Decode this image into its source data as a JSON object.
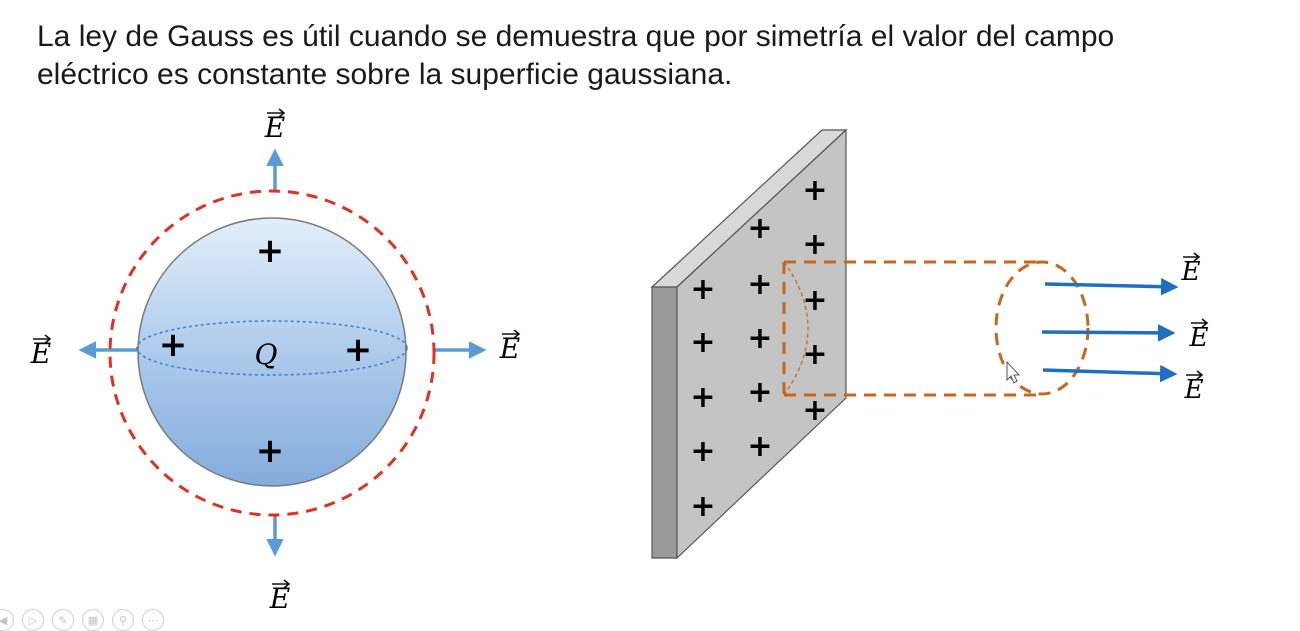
{
  "intro": {
    "line1": "La ley de Gauss es útil cuando se demuestra que por simetría el valor del campo",
    "line2": "eléctrico es constante sobre la superficie gaussiana."
  },
  "sphere": {
    "charge_label": "Q",
    "field_labels": {
      "top": "E",
      "left": "E",
      "right": "E",
      "bottom": "E"
    },
    "plus_sign": "+"
  },
  "plate": {
    "plus_sign": "+",
    "field_labels": [
      "E",
      "E",
      "E"
    ]
  },
  "colors": {
    "gaussian_sphere": "#e03020",
    "cylinder": "#c8671c",
    "arrow_sphere": "#5b9bd5",
    "arrow_plate": "#1f6fc1",
    "plate_face": "#c4c4c4",
    "plate_edge": "#9a9a9a"
  },
  "toolbar": {
    "icons": [
      "previous-icon",
      "play-icon",
      "pen-icon",
      "slides-icon",
      "zoom-icon",
      "more-icon"
    ]
  }
}
